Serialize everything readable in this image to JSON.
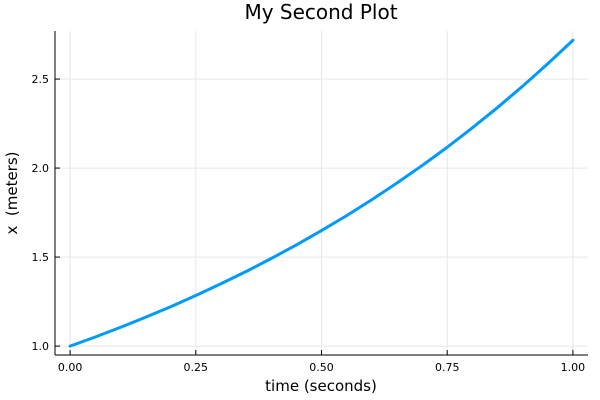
{
  "chart_data": {
    "type": "line",
    "title": "My Second Plot",
    "xlabel": "time (seconds)",
    "ylabel": "x  (meters)",
    "xlim": [
      -0.03,
      1.03
    ],
    "ylim": [
      0.95,
      2.77
    ],
    "x_ticks": [
      0.0,
      0.25,
      0.5,
      0.75,
      1.0
    ],
    "x_tick_labels": [
      "0.00",
      "0.25",
      "0.50",
      "0.75",
      "1.00"
    ],
    "y_ticks": [
      1.0,
      1.5,
      2.0,
      2.5
    ],
    "y_tick_labels": [
      "1.0",
      "1.5",
      "2.0",
      "2.5"
    ],
    "grid": true,
    "legend": "none",
    "series": [
      {
        "color": "#009af9",
        "x": [
          0.0,
          0.05,
          0.1,
          0.15,
          0.2,
          0.25,
          0.3,
          0.35,
          0.4,
          0.45,
          0.5,
          0.55,
          0.6,
          0.65,
          0.7,
          0.75,
          0.8,
          0.85,
          0.9,
          0.95,
          1.0
        ],
        "y": [
          1.0,
          1.051,
          1.105,
          1.162,
          1.221,
          1.284,
          1.35,
          1.419,
          1.492,
          1.568,
          1.649,
          1.733,
          1.822,
          1.916,
          2.014,
          2.117,
          2.226,
          2.34,
          2.46,
          2.586,
          2.718
        ]
      }
    ]
  }
}
